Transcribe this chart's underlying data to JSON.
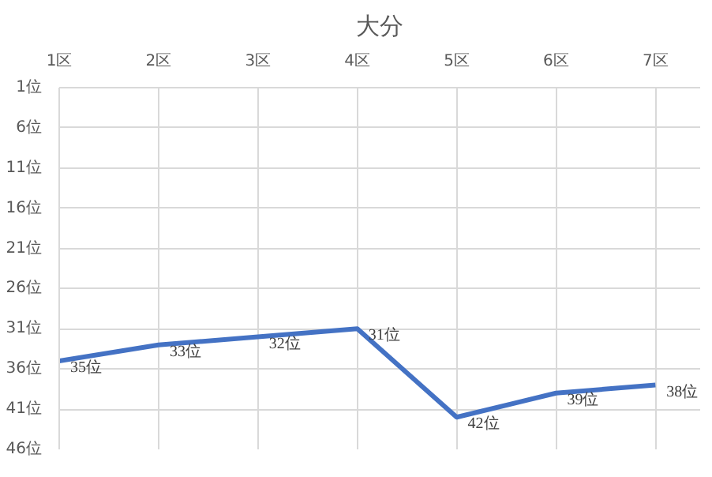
{
  "chart_data": {
    "type": "line",
    "title": "大分",
    "categories": [
      "1区",
      "2区",
      "3区",
      "4区",
      "5区",
      "6区",
      "7区"
    ],
    "series": [
      {
        "color": "#4472c4",
        "values": [
          35,
          33,
          32,
          31,
          42,
          39,
          38
        ],
        "value_labels": [
          "35位",
          "33位",
          "32位",
          "31位",
          "42位",
          "39位",
          "38位"
        ]
      }
    ],
    "ylim": [
      46,
      1
    ],
    "yticks": [
      {
        "value": 1,
        "label": "1位"
      },
      {
        "value": 6,
        "label": "6位"
      },
      {
        "value": 11,
        "label": "11位"
      },
      {
        "value": 16,
        "label": "16位"
      },
      {
        "value": 21,
        "label": "21位"
      },
      {
        "value": 26,
        "label": "26位"
      },
      {
        "value": 31,
        "label": "31位"
      },
      {
        "value": 36,
        "label": "36位"
      },
      {
        "value": 41,
        "label": "41位"
      },
      {
        "value": 46,
        "label": "46位"
      }
    ],
    "grid": true,
    "marker": "none",
    "line_style": "solid"
  }
}
